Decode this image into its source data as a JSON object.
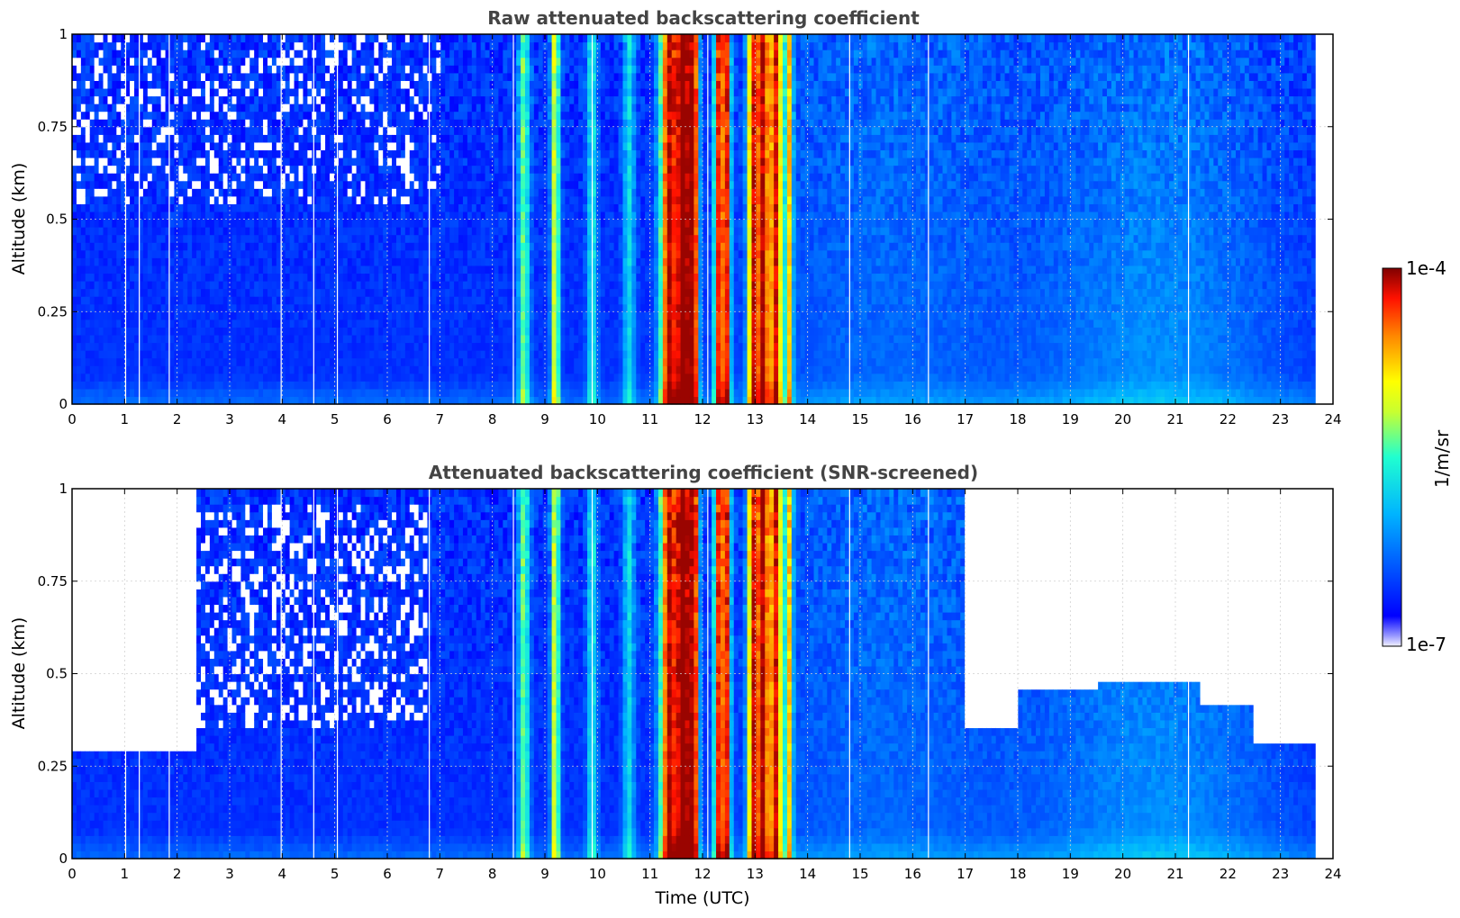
{
  "chart_data": [
    {
      "type": "heatmap",
      "title": "Raw attenuated backscattering coefficient",
      "xlabel": "",
      "ylabel": "Altitude (km)",
      "xlim": [
        0,
        24
      ],
      "ylim": [
        0,
        1
      ],
      "xticks": [
        "0",
        "1",
        "2",
        "3",
        "4",
        "5",
        "6",
        "7",
        "8",
        "9",
        "10",
        "11",
        "12",
        "13",
        "14",
        "15",
        "16",
        "17",
        "18",
        "19",
        "20",
        "21",
        "22",
        "23",
        "24"
      ],
      "yticks": [
        "0",
        "0.25",
        "0.5",
        "0.75",
        "1"
      ],
      "grid": true,
      "data_end_hour": 23.67,
      "colorscale": "jet (log)",
      "regions": [
        {
          "description": "background, noisy aloft",
          "hours": [
            0,
            8.5
          ],
          "log10_value": -6.6
        },
        {
          "description": "cloud/precip columns",
          "hours": [
            8.5,
            9.5
          ],
          "log10_value": -5.3
        },
        {
          "description": "strong signal",
          "hours": [
            11.2,
            12.0
          ],
          "log10_value": -4.3
        },
        {
          "description": "strong signal",
          "hours": [
            12.2,
            12.6
          ],
          "log10_value": -4.4
        },
        {
          "description": "strong signal",
          "hours": [
            12.9,
            13.7
          ],
          "log10_value": -4.5
        },
        {
          "description": "aerosol layer",
          "hours": [
            17.5,
            22.5
          ],
          "log10_value": -6.1
        }
      ]
    },
    {
      "type": "heatmap",
      "title": "Attenuated backscattering coefficient (SNR-screened)",
      "xlabel": "Time (UTC)",
      "ylabel": "Altitude (km)",
      "xlim": [
        0,
        24
      ],
      "ylim": [
        0,
        1
      ],
      "xticks": [
        "0",
        "1",
        "2",
        "3",
        "4",
        "5",
        "6",
        "7",
        "8",
        "9",
        "10",
        "11",
        "12",
        "13",
        "14",
        "15",
        "16",
        "17",
        "18",
        "19",
        "20",
        "21",
        "22",
        "23",
        "24"
      ],
      "yticks": [
        "0",
        "0.25",
        "0.5",
        "0.75",
        "1"
      ],
      "grid": true,
      "data_end_hour": 23.67,
      "colorscale": "jet (log)",
      "screened_tops_km": [
        {
          "hours": [
            0,
            2.4
          ],
          "top_km": 0.3
        },
        {
          "hours": [
            17.0,
            18.0
          ],
          "top_km": 0.36
        },
        {
          "hours": [
            18.0,
            19.5
          ],
          "top_km": 0.45
        },
        {
          "hours": [
            19.5,
            20.5
          ],
          "top_km": 0.48
        },
        {
          "hours": [
            20.5,
            21.5
          ],
          "top_km": 0.47
        },
        {
          "hours": [
            21.5,
            22.5
          ],
          "top_km": 0.42
        },
        {
          "hours": [
            22.5,
            23.67
          ],
          "top_km": 0.32
        }
      ]
    }
  ],
  "colorbar": {
    "label": "1/m/sr",
    "max_label": "1e-4",
    "min_label": "1e-7",
    "log10_range": [
      -7,
      -4
    ]
  },
  "colors": {
    "grid": "#cfcfcf",
    "title": "#444444"
  }
}
